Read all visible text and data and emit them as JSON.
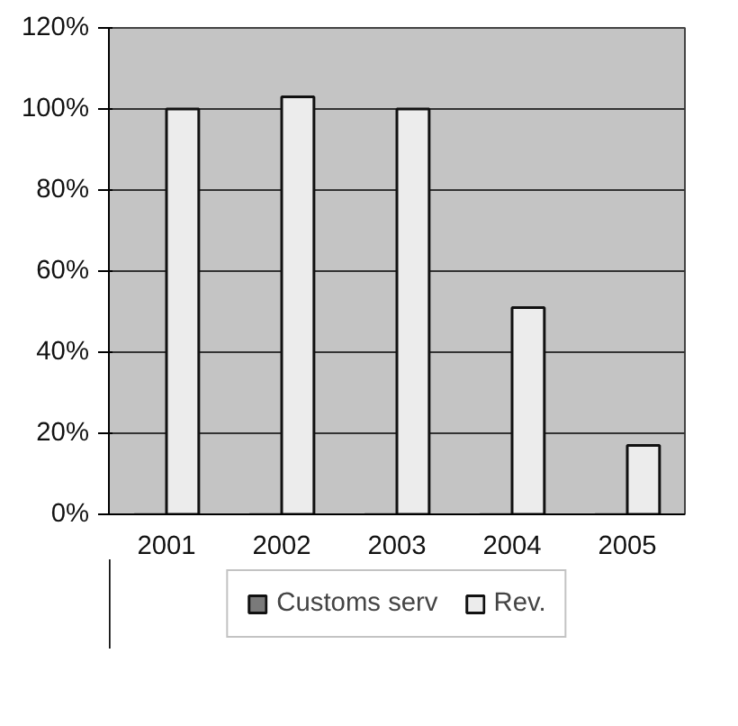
{
  "chart_data": {
    "type": "bar",
    "categories": [
      "2001",
      "2002",
      "2003",
      "2004",
      "2005"
    ],
    "series": [
      {
        "name": "Customs serv",
        "color": "#7a7a7a",
        "values": [
          0,
          0,
          0,
          0,
          0
        ]
      },
      {
        "name": "Rev.",
        "color": "#ececec",
        "values": [
          100,
          103,
          100,
          51,
          17
        ]
      }
    ],
    "ylim": [
      0,
      120
    ],
    "yticks": [
      {
        "value": 0,
        "label": "0%"
      },
      {
        "value": 20,
        "label": "20%"
      },
      {
        "value": 40,
        "label": "40%"
      },
      {
        "value": 60,
        "label": "60%"
      },
      {
        "value": 80,
        "label": "80%"
      },
      {
        "value": 100,
        "label": "100%"
      },
      {
        "value": 120,
        "label": "120%"
      }
    ],
    "grid": "y",
    "legend": "bottom"
  }
}
